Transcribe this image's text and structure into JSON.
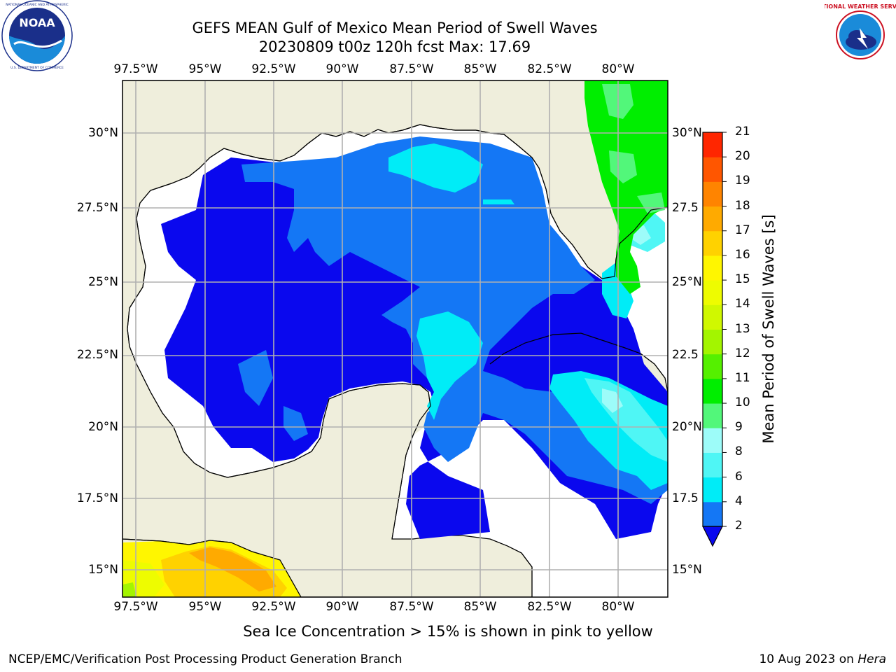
{
  "title": {
    "line1": "GEFS MEAN Gulf of Mexico Mean Period of Swell Waves",
    "line2": "20230809 t00z 120h fcst   Max: 17.69"
  },
  "logos": {
    "left": {
      "name": "noaa-logo",
      "text": "NOAA",
      "ring_text": "NATIONAL OCEANIC AND ATMOSPHERIC ADMINISTRATION · U.S. DEPARTMENT OF COMMERCE"
    },
    "right": {
      "name": "nws-logo",
      "ring_text": "NATIONAL WEATHER SERVICE"
    }
  },
  "map": {
    "lon_labels": [
      "97.5°W",
      "95°W",
      "92.5°W",
      "90°W",
      "87.5°W",
      "85°W",
      "82.5°W",
      "80°W"
    ],
    "lat_labels_left": [
      "30°N",
      "27.5°N",
      "25°N",
      "22.5°N",
      "20°N",
      "17.5°N",
      "15°N"
    ],
    "lat_labels_right": [
      "30°N",
      "27.5",
      "25°N",
      "22.5",
      "20°N",
      "17.5",
      "15°N"
    ],
    "lon_range": [
      -98,
      -79
    ],
    "lat_range": [
      14,
      31.5
    ],
    "gridlines": true,
    "land_color": "#efeedc",
    "no_data_color": "#ffffff"
  },
  "colorbar": {
    "title": "Mean Period of Swell Waves [s]",
    "ticks": [
      "2",
      "4",
      "6",
      "8",
      "9",
      "10",
      "11",
      "12",
      "13",
      "14",
      "15",
      "16",
      "17",
      "18",
      "19",
      "20",
      "21"
    ],
    "colors": [
      "#1477f5",
      "#00ecf7",
      "#4ff6f5",
      "#9dfcf9",
      "#52f77a",
      "#00ee00",
      "#55f000",
      "#a3f500",
      "#d0f800",
      "#eefc00",
      "#fff600",
      "#ffd200",
      "#ffaa00",
      "#ff8400",
      "#ff5600",
      "#ff2600"
    ],
    "under_color": "#0a08ee",
    "extend": "min"
  },
  "note": "Sea Ice Concentration > 15% is shown in pink to yellow",
  "footer": {
    "left": "NCEP/EMC/Verification Post Processing Product Generation Branch",
    "right_date": "10 Aug 2023 on ",
    "right_host": "Hera"
  }
}
